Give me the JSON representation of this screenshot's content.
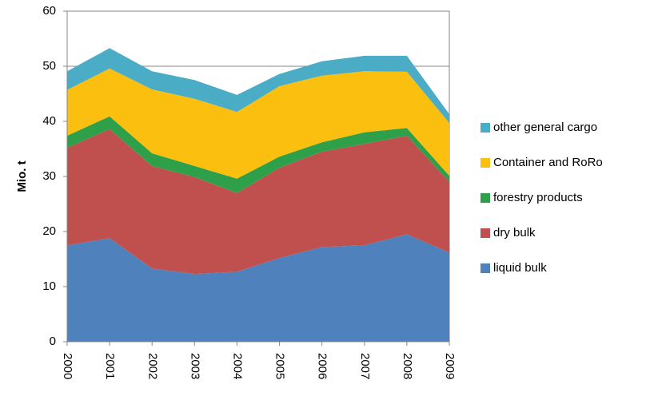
{
  "chart_data": {
    "type": "stacked-area",
    "y_label": "Mio. t",
    "categories": [
      "2000",
      "2001",
      "2002",
      "2003",
      "2004",
      "2005",
      "2006",
      "2007",
      "2008",
      "2009"
    ],
    "series": [
      {
        "name": "liquid bulk",
        "color": "#4f81bd",
        "values": [
          17.5,
          18.8,
          13.3,
          12.3,
          12.7,
          15.2,
          17.2,
          17.5,
          19.5,
          16.2
        ]
      },
      {
        "name": "dry bulk",
        "color": "#c0504d",
        "values": [
          17.7,
          19.8,
          18.6,
          17.6,
          14.3,
          16.4,
          17.3,
          18.4,
          17.9,
          12.8
        ]
      },
      {
        "name": "forestry products",
        "color": "#2fa04a",
        "values": [
          2.2,
          2.3,
          2.3,
          2.0,
          2.6,
          2.0,
          1.7,
          2.1,
          1.4,
          1.1
        ]
      },
      {
        "name": "Container and  RoRo",
        "color": "#fbbf0f",
        "values": [
          8.3,
          8.7,
          11.6,
          12.2,
          12.1,
          12.8,
          12.1,
          11.1,
          10.2,
          9.6
        ]
      },
      {
        "name": "other general cargo",
        "color": "#4bacc6",
        "values": [
          3.4,
          3.7,
          3.3,
          3.4,
          3.1,
          2.2,
          2.6,
          2.8,
          2.9,
          1.6
        ]
      }
    ],
    "ylim": [
      0,
      60
    ],
    "yticks": [
      0,
      10,
      20,
      30,
      40,
      50,
      60
    ],
    "grid": true,
    "legend": "right"
  }
}
